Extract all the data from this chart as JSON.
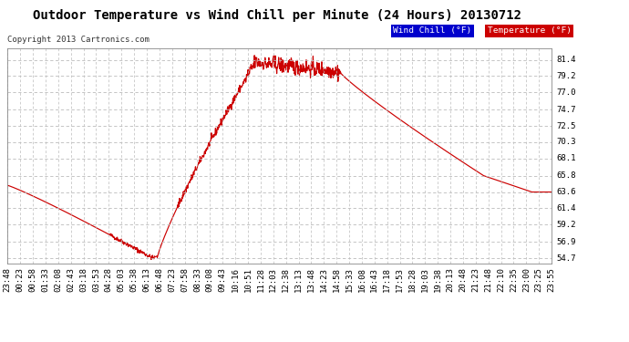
{
  "title": "Outdoor Temperature vs Wind Chill per Minute (24 Hours) 20130712",
  "copyright": "Copyright 2013 Cartronics.com",
  "ylabel_right_ticks": [
    54.7,
    56.9,
    59.2,
    61.4,
    63.6,
    65.8,
    68.1,
    70.3,
    72.5,
    74.7,
    77.0,
    79.2,
    81.4
  ],
  "ylim": [
    54.0,
    83.0
  ],
  "bg_color": "#ffffff",
  "grid_color": "#bbbbbb",
  "line_color": "#cc0000",
  "legend_wind_chill_bg": "#0000cc",
  "legend_temp_bg": "#cc0000",
  "title_fontsize": 10,
  "copyright_fontsize": 6.5,
  "tick_fontsize": 6.5,
  "x_tick_labels": [
    "23:48",
    "00:23",
    "00:58",
    "01:33",
    "02:08",
    "02:43",
    "03:18",
    "03:53",
    "04:28",
    "05:03",
    "05:38",
    "06:13",
    "06:48",
    "07:23",
    "07:58",
    "08:33",
    "09:08",
    "09:43",
    "10:16",
    "10:51",
    "11:28",
    "12:03",
    "12:38",
    "13:13",
    "13:48",
    "14:23",
    "14:58",
    "15:33",
    "16:08",
    "16:43",
    "17:18",
    "17:53",
    "18:28",
    "19:03",
    "19:38",
    "20:13",
    "20:48",
    "21:23",
    "21:48",
    "22:10",
    "22:35",
    "23:00",
    "23:25",
    "23:55"
  ]
}
